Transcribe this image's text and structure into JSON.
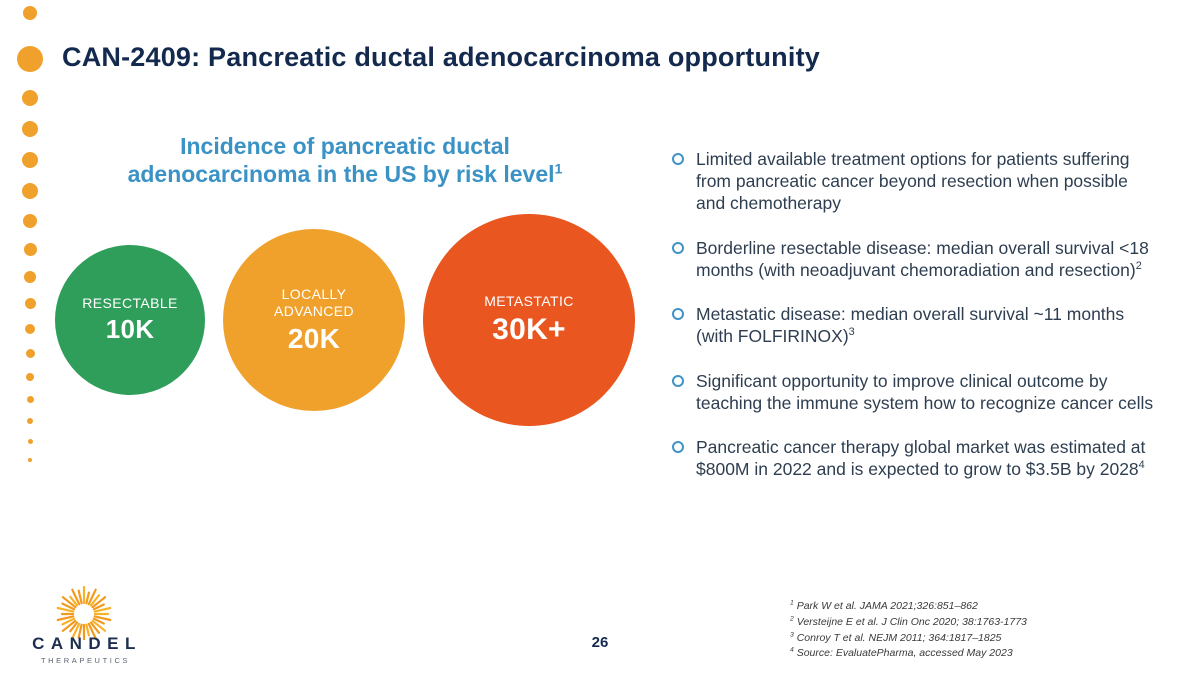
{
  "theme": {
    "navy": "#13294D",
    "heading_blue": "#3A92C5",
    "accent_orange": "#F0A12C",
    "bullet_marker_blue": "#3F93C6"
  },
  "slide": {
    "title": "CAN-2409: Pancreatic ductal adenocarcinoma opportunity",
    "page_number": "26"
  },
  "chart": {
    "heading": "Incidence of pancreatic ductal adenocarcinoma in the US by risk level",
    "heading_superscript": "1",
    "bubbles": [
      {
        "label": "RESECTABLE",
        "value": "10K",
        "color": "#2F9E5B",
        "size": 150
      },
      {
        "label": "LOCALLY ADVANCED",
        "value": "20K",
        "color": "#F0A12C",
        "size": 182
      },
      {
        "label": "METASTATIC",
        "value": "30K+",
        "color": "#E9561F",
        "size": 212
      }
    ]
  },
  "chart_data": {
    "type": "bubble",
    "title": "Incidence of pancreatic ductal adenocarcinoma in the US by risk level",
    "categories": [
      "Resectable",
      "Locally advanced",
      "Metastatic"
    ],
    "values": [
      "10K",
      "20K",
      "30K+"
    ],
    "colors": [
      "#2F9E5B",
      "#F0A12C",
      "#E9561F"
    ]
  },
  "bullets": [
    {
      "text": "Limited available treatment options for patients suffering from pancreatic cancer beyond resection when possible and chemotherapy",
      "sup": ""
    },
    {
      "text": "Borderline resectable disease: median overall survival <18 months (with neoadjuvant chemoradiation and resection)",
      "sup": "2"
    },
    {
      "text": "Metastatic disease: median overall survival ~11 months (with FOLFIRINOX)",
      "sup": "3"
    },
    {
      "text": "Significant opportunity to improve clinical outcome by teaching the immune system how to recognize cancer cells",
      "sup": ""
    },
    {
      "text": "Pancreatic cancer therapy global market was estimated at $800M in 2022 and is expected to grow to $3.5B by 2028",
      "sup": "4"
    }
  ],
  "footnotes": [
    {
      "sup": "1",
      "text": "Park W et al. JAMA 2021;326:851–862"
    },
    {
      "sup": "2",
      "text": "Versteijne E et al. J Clin Onc 2020; 38:1763-1773"
    },
    {
      "sup": "3",
      "text": "Conroy T et al. NEJM 2011; 364:1817–1825"
    },
    {
      "sup": "4",
      "text": "Source: EvaluatePharma, accessed May 2023"
    }
  ],
  "logo": {
    "name": "CANDEL",
    "sub": "THERAPEUTICS"
  }
}
